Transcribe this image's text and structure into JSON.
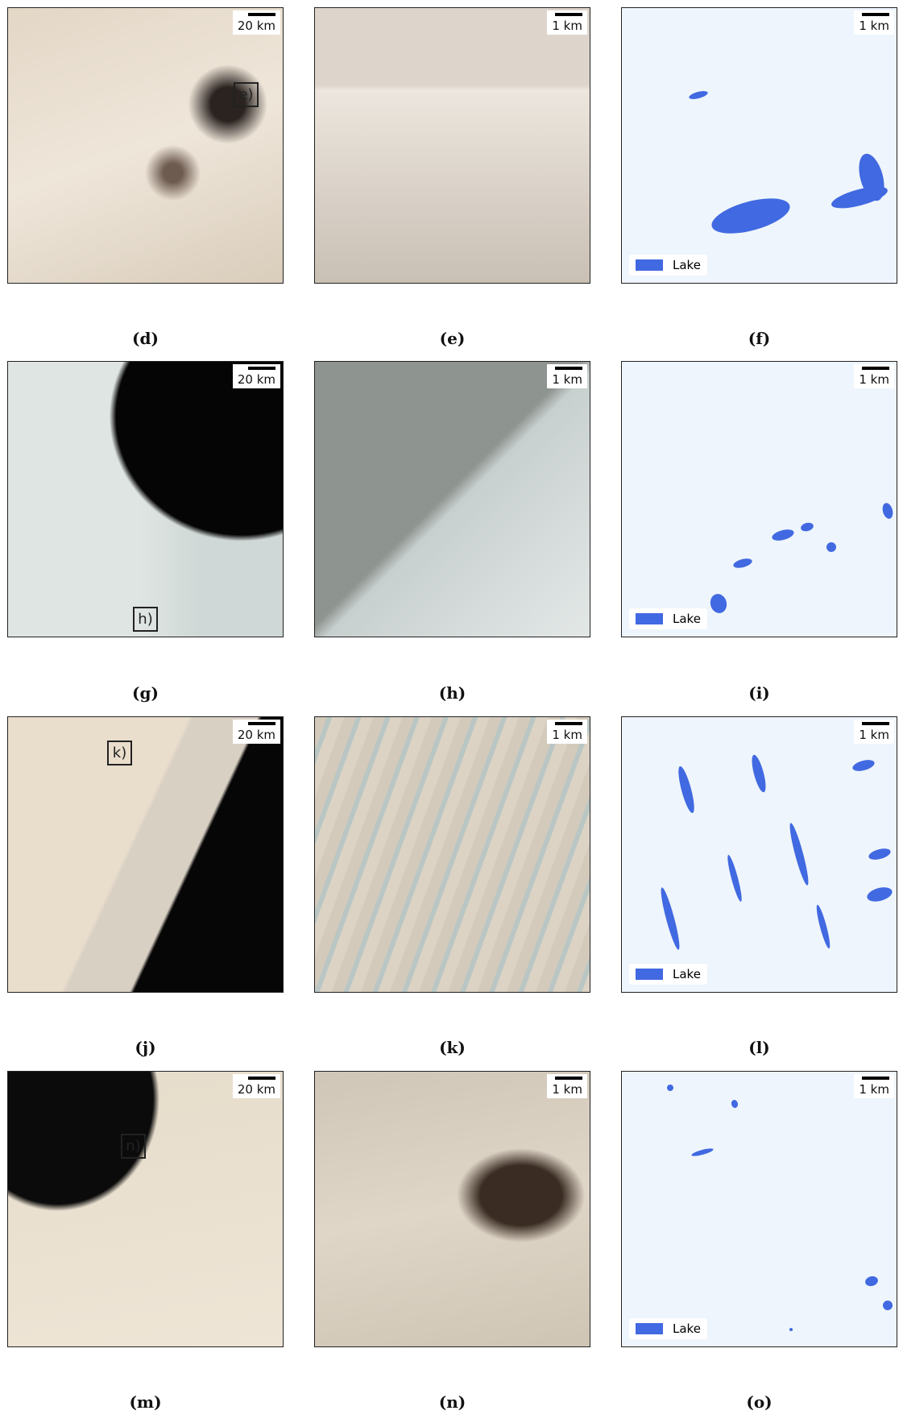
{
  "panels": [
    {
      "row": [
        {
          "caption": "(d)",
          "scale": "20 km",
          "inset": "e)"
        },
        {
          "caption": "(e)",
          "scale": "1 km"
        },
        {
          "caption": "(f)",
          "scale": "1 km",
          "legend": "Lake"
        }
      ]
    },
    {
      "row": [
        {
          "caption": "(g)",
          "scale": "20 km",
          "inset": "h)"
        },
        {
          "caption": "(h)",
          "scale": "1 km"
        },
        {
          "caption": "(i)",
          "scale": "1 km",
          "legend": "Lake"
        }
      ]
    },
    {
      "row": [
        {
          "caption": "(j)",
          "scale": "20 km",
          "inset": "k)"
        },
        {
          "caption": "(k)",
          "scale": "1 km"
        },
        {
          "caption": "(l)",
          "scale": "1 km",
          "legend": "Lake"
        }
      ]
    },
    {
      "row": [
        {
          "caption": "(m)",
          "scale": "20 km",
          "inset": "n)"
        },
        {
          "caption": "(n)",
          "scale": "1 km"
        },
        {
          "caption": "(o)",
          "scale": "1 km",
          "legend": "Lake"
        }
      ]
    }
  ]
}
